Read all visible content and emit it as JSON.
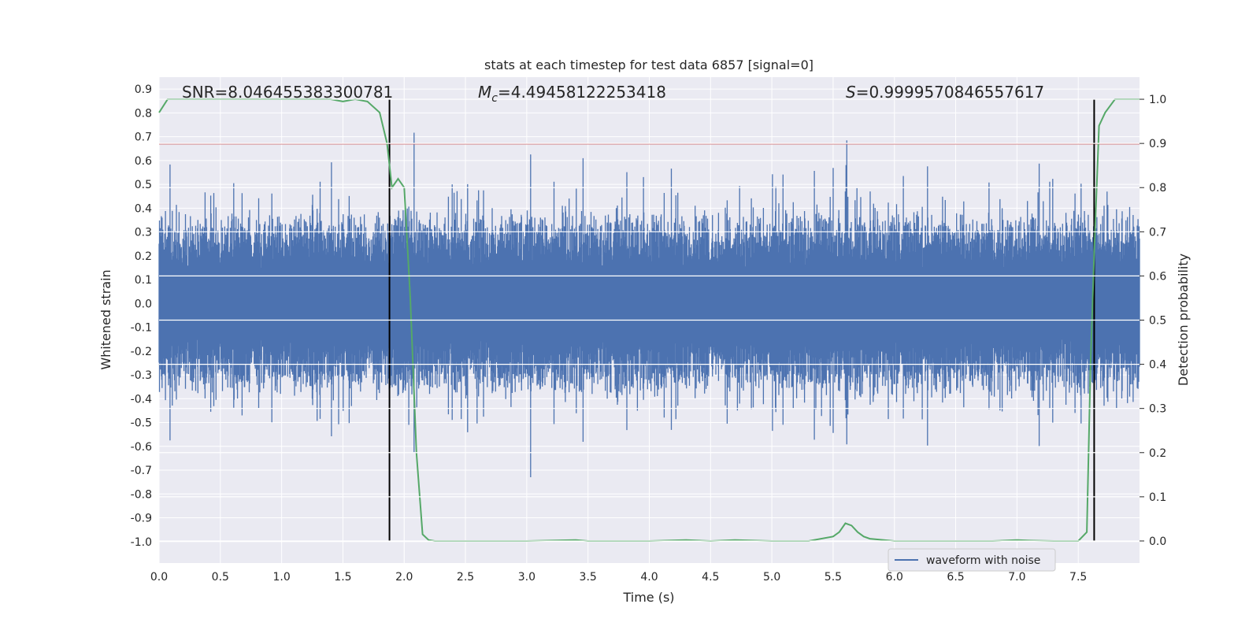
{
  "chart_data": {
    "type": "line",
    "title": "stats at each timestep for test data 6857 [signal=0]",
    "xlabel": "Time (s)",
    "ylabel": "Whitened strain",
    "y2label": "Detection probability",
    "xlim": [
      0.0,
      8.0
    ],
    "ylim": [
      -1.09,
      0.95
    ],
    "y2lim": [
      -0.05,
      1.05
    ],
    "x_ticks": [
      "0.0",
      "0.5",
      "1.0",
      "1.5",
      "2.0",
      "2.5",
      "3.0",
      "3.5",
      "4.0",
      "4.5",
      "5.0",
      "5.5",
      "6.0",
      "6.5",
      "7.0",
      "7.5"
    ],
    "y_ticks": [
      "0.9",
      "0.8",
      "0.7",
      "0.6",
      "0.5",
      "0.4",
      "0.3",
      "0.2",
      "0.1",
      "0.0",
      "-0.1",
      "-0.2",
      "-0.3",
      "-0.4",
      "-0.5",
      "-0.6",
      "-0.7",
      "-0.8",
      "-0.9",
      "-1.0"
    ],
    "y2_ticks": [
      "1.0",
      "0.9",
      "0.8",
      "0.7",
      "0.6",
      "0.5",
      "0.4",
      "0.3",
      "0.2",
      "0.1",
      "0.0"
    ],
    "annotations": {
      "snr": "SNR=8.046455383300781",
      "mc_symbol": "M",
      "mc_sub": "c",
      "mc_value": "=4.49458122253418",
      "s_symbol": "S",
      "s_value": "=0.9999570846557617"
    },
    "threshold_y": 0.67,
    "vlines_x": [
      1.88,
      7.63
    ],
    "legend": {
      "label": "waveform with noise",
      "placement": "lower-right"
    },
    "grid": true,
    "series": [
      {
        "name": "waveform with noise",
        "axis": "left",
        "color": "#4c72b0",
        "style": "dense-noise",
        "approx_envelope": [
          -0.45,
          0.45
        ],
        "duration_s": 8.0
      },
      {
        "axis": "right",
        "color": "#55a868",
        "x": [
          0.0,
          0.07,
          0.2,
          0.5,
          0.8,
          1.0,
          1.2,
          1.4,
          1.5,
          1.6,
          1.7,
          1.8,
          1.86,
          1.9,
          1.95,
          2.0,
          2.05,
          2.1,
          2.15,
          2.2,
          2.25,
          2.3,
          2.5,
          3.0,
          3.4,
          3.5,
          4.0,
          4.3,
          4.5,
          4.7,
          5.0,
          5.3,
          5.5,
          5.55,
          5.6,
          5.65,
          5.7,
          5.75,
          5.8,
          6.0,
          6.5,
          6.8,
          7.0,
          7.1,
          7.3,
          7.5,
          7.57,
          7.6,
          7.63,
          7.67,
          7.72,
          7.8,
          7.88,
          8.0
        ],
        "y": [
          0.97,
          1.0,
          1.0,
          1.0,
          1.0,
          1.0,
          1.0,
          1.0,
          0.995,
          1.0,
          0.995,
          0.97,
          0.9,
          0.8,
          0.82,
          0.8,
          0.55,
          0.2,
          0.015,
          0.002,
          0.0,
          0.0,
          0.0,
          0.0,
          0.002,
          0.0,
          0.0,
          0.002,
          0.0,
          0.002,
          0.0,
          0.0,
          0.01,
          0.02,
          0.04,
          0.035,
          0.02,
          0.01,
          0.005,
          0.0,
          0.0,
          0.0,
          0.002,
          0.001,
          0.0,
          0.0,
          0.02,
          0.4,
          0.65,
          0.94,
          0.97,
          1.0,
          1.0,
          1.0
        ]
      }
    ]
  }
}
